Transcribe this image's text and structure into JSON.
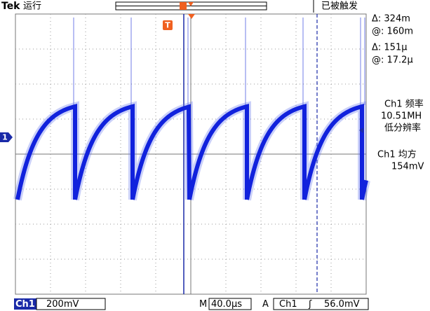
{
  "header": {
    "brand": "Tek",
    "status": "运行",
    "trigger_state": "已被触发",
    "trigger_marker": "T"
  },
  "channel_marker": "1",
  "cursors": {
    "delta_v": "Δ:  324m",
    "at_v": "@:  160m",
    "delta_t": "Δ:   151μ",
    "at_t": "@:  17.2μ"
  },
  "measurements": [
    {
      "label": "Ch1 频率",
      "value": "10.51MH",
      "note": "低分辨率"
    },
    {
      "label": "Ch1 均方",
      "value": "154mV"
    }
  ],
  "footer": {
    "channel": "Ch1",
    "scale": "200mV",
    "time_prefix": "M",
    "time_scale": "40.0μs",
    "trigger_prefix": "A",
    "trigger_channel": "Ch1",
    "trigger_slope": "ʃ",
    "trigger_level": "56.0mV"
  }
}
